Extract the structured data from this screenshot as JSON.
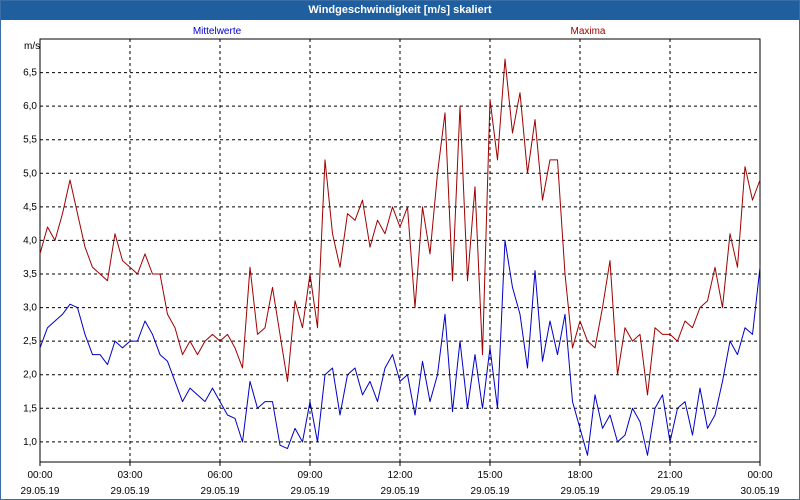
{
  "window": {
    "title": "Windgeschwindigkeit [m/s] skaliert"
  },
  "chart_data": {
    "type": "line",
    "title": "Windgeschwindigkeit [m/s] skaliert",
    "ylabel": "m/s",
    "xlabel": "",
    "ylim": [
      0.7,
      7.0
    ],
    "yticks": [
      1.0,
      1.5,
      2.0,
      2.5,
      3.0,
      3.5,
      4.0,
      4.5,
      5.0,
      5.5,
      6.0,
      6.5
    ],
    "ytick_labels": [
      "1,0",
      "1,5",
      "2,0",
      "2,5",
      "3,0",
      "3,5",
      "4,0",
      "4,5",
      "5,0",
      "5,5",
      "6,0",
      "6,5"
    ],
    "xlim_hours": [
      0,
      24
    ],
    "xticks": [
      {
        "time": "00:00",
        "date": "29.05.19"
      },
      {
        "time": "03:00",
        "date": "29.05.19"
      },
      {
        "time": "06:00",
        "date": "29.05.19"
      },
      {
        "time": "09:00",
        "date": "29.05.19"
      },
      {
        "time": "12:00",
        "date": "29.05.19"
      },
      {
        "time": "15:00",
        "date": "29.05.19"
      },
      {
        "time": "18:00",
        "date": "29.05.19"
      },
      {
        "time": "21:00",
        "date": "29.05.19"
      },
      {
        "time": "00:00",
        "date": "30.05.19"
      }
    ],
    "grid": true,
    "legend": "top",
    "series": [
      {
        "name": "Mittelwerte",
        "color": "#0000c8",
        "x": [
          0,
          0.25,
          0.5,
          0.75,
          1.0,
          1.25,
          1.5,
          1.75,
          2.0,
          2.25,
          2.5,
          2.75,
          3.0,
          3.25,
          3.5,
          3.75,
          4.0,
          4.25,
          4.5,
          4.75,
          5.0,
          5.25,
          5.5,
          5.75,
          6.0,
          6.25,
          6.5,
          6.75,
          7.0,
          7.25,
          7.5,
          7.75,
          8.0,
          8.25,
          8.5,
          8.75,
          9.0,
          9.25,
          9.5,
          9.75,
          10.0,
          10.25,
          10.5,
          10.75,
          11.0,
          11.25,
          11.5,
          11.75,
          12.0,
          12.25,
          12.5,
          12.75,
          13.0,
          13.25,
          13.5,
          13.75,
          14.0,
          14.25,
          14.5,
          14.75,
          15.0,
          15.25,
          15.5,
          15.75,
          16.0,
          16.25,
          16.5,
          16.75,
          17.0,
          17.25,
          17.5,
          17.75,
          18.0,
          18.25,
          18.5,
          18.75,
          19.0,
          19.25,
          19.5,
          19.75,
          20.0,
          20.25,
          20.5,
          20.75,
          21.0,
          21.25,
          21.5,
          21.75,
          22.0,
          22.25,
          22.5,
          22.75,
          23.0,
          23.25,
          23.5,
          23.75,
          24.0
        ],
        "values": [
          2.4,
          2.7,
          2.8,
          2.9,
          3.05,
          3.0,
          2.6,
          2.3,
          2.3,
          2.15,
          2.5,
          2.4,
          2.5,
          2.5,
          2.8,
          2.6,
          2.3,
          2.2,
          1.9,
          1.6,
          1.8,
          1.7,
          1.6,
          1.8,
          1.6,
          1.4,
          1.35,
          1.0,
          1.9,
          1.5,
          1.6,
          1.6,
          0.95,
          0.9,
          1.2,
          1.0,
          1.6,
          1.0,
          2.0,
          2.1,
          1.4,
          2.0,
          2.1,
          1.7,
          1.9,
          1.6,
          2.1,
          2.3,
          1.9,
          2.0,
          1.4,
          2.2,
          1.6,
          2.0,
          2.9,
          1.45,
          2.5,
          1.5,
          2.3,
          1.5,
          2.4,
          1.5,
          4.0,
          3.3,
          2.9,
          2.1,
          3.55,
          2.2,
          2.8,
          2.3,
          2.9,
          1.6,
          1.2,
          0.8,
          1.7,
          1.2,
          1.4,
          1.0,
          1.1,
          1.5,
          1.3,
          0.8,
          1.5,
          1.7,
          1.0,
          1.5,
          1.6,
          1.1,
          1.8,
          1.2,
          1.4,
          1.9,
          2.5,
          2.3,
          2.7,
          2.6,
          3.6
        ]
      },
      {
        "name": "Maxima",
        "color": "#a00000",
        "x": [
          0,
          0.25,
          0.5,
          0.75,
          1.0,
          1.25,
          1.5,
          1.75,
          2.0,
          2.25,
          2.5,
          2.75,
          3.0,
          3.25,
          3.5,
          3.75,
          4.0,
          4.25,
          4.5,
          4.75,
          5.0,
          5.25,
          5.5,
          5.75,
          6.0,
          6.25,
          6.5,
          6.75,
          7.0,
          7.25,
          7.5,
          7.75,
          8.0,
          8.25,
          8.5,
          8.75,
          9.0,
          9.25,
          9.5,
          9.75,
          10.0,
          10.25,
          10.5,
          10.75,
          11.0,
          11.25,
          11.5,
          11.75,
          12.0,
          12.25,
          12.5,
          12.75,
          13.0,
          13.25,
          13.5,
          13.75,
          14.0,
          14.25,
          14.5,
          14.75,
          15.0,
          15.25,
          15.5,
          15.75,
          16.0,
          16.25,
          16.5,
          16.75,
          17.0,
          17.25,
          17.5,
          17.75,
          18.0,
          18.25,
          18.5,
          18.75,
          19.0,
          19.25,
          19.5,
          19.75,
          20.0,
          20.25,
          20.5,
          20.75,
          21.0,
          21.25,
          21.5,
          21.75,
          22.0,
          22.25,
          22.5,
          22.75,
          23.0,
          23.25,
          23.5,
          23.75,
          24.0
        ],
        "values": [
          3.8,
          4.2,
          4.0,
          4.4,
          4.9,
          4.4,
          3.9,
          3.6,
          3.5,
          3.4,
          4.1,
          3.7,
          3.6,
          3.5,
          3.8,
          3.5,
          3.5,
          2.9,
          2.7,
          2.3,
          2.5,
          2.3,
          2.5,
          2.6,
          2.5,
          2.6,
          2.4,
          2.1,
          3.6,
          2.6,
          2.7,
          3.3,
          2.6,
          1.9,
          3.1,
          2.7,
          3.5,
          2.7,
          5.2,
          4.1,
          3.6,
          4.4,
          4.3,
          4.6,
          3.9,
          4.3,
          4.1,
          4.5,
          4.2,
          4.5,
          3.0,
          4.5,
          3.8,
          5.0,
          5.9,
          3.4,
          6.0,
          3.4,
          4.8,
          2.3,
          6.1,
          5.2,
          6.7,
          5.6,
          6.2,
          5.0,
          5.8,
          4.6,
          5.2,
          5.2,
          3.5,
          2.4,
          2.8,
          2.5,
          2.4,
          3.0,
          3.7,
          2.0,
          2.7,
          2.5,
          2.6,
          1.7,
          2.7,
          2.6,
          2.6,
          2.5,
          2.8,
          2.7,
          3.0,
          3.1,
          3.6,
          3.0,
          4.1,
          3.6,
          5.1,
          4.6,
          4.9
        ]
      }
    ]
  }
}
